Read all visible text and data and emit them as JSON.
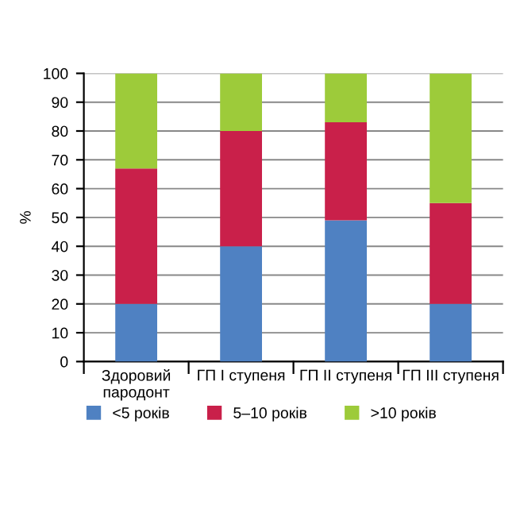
{
  "chart_data": {
    "type": "bar",
    "stacked": true,
    "ylabel": "%",
    "categories": [
      "Здоровий\nпародонт",
      "ГП I ступеня",
      "ГП II ступеня",
      "ГП III ступеня"
    ],
    "series": [
      {
        "name": "<5 років",
        "color": "#4f81c2",
        "values": [
          20,
          40,
          49,
          20
        ]
      },
      {
        "name": "5–10 років",
        "color": "#c9204a",
        "values": [
          47,
          40,
          34,
          35
        ]
      },
      {
        "name": ">10 років",
        "color": "#9dcb3a",
        "values": [
          33,
          20,
          17,
          45
        ]
      }
    ],
    "ylim": [
      0,
      100
    ],
    "yticks": [
      0,
      10,
      20,
      30,
      40,
      50,
      60,
      70,
      80,
      90,
      100
    ],
    "grid": "y",
    "legend": "bottom"
  }
}
